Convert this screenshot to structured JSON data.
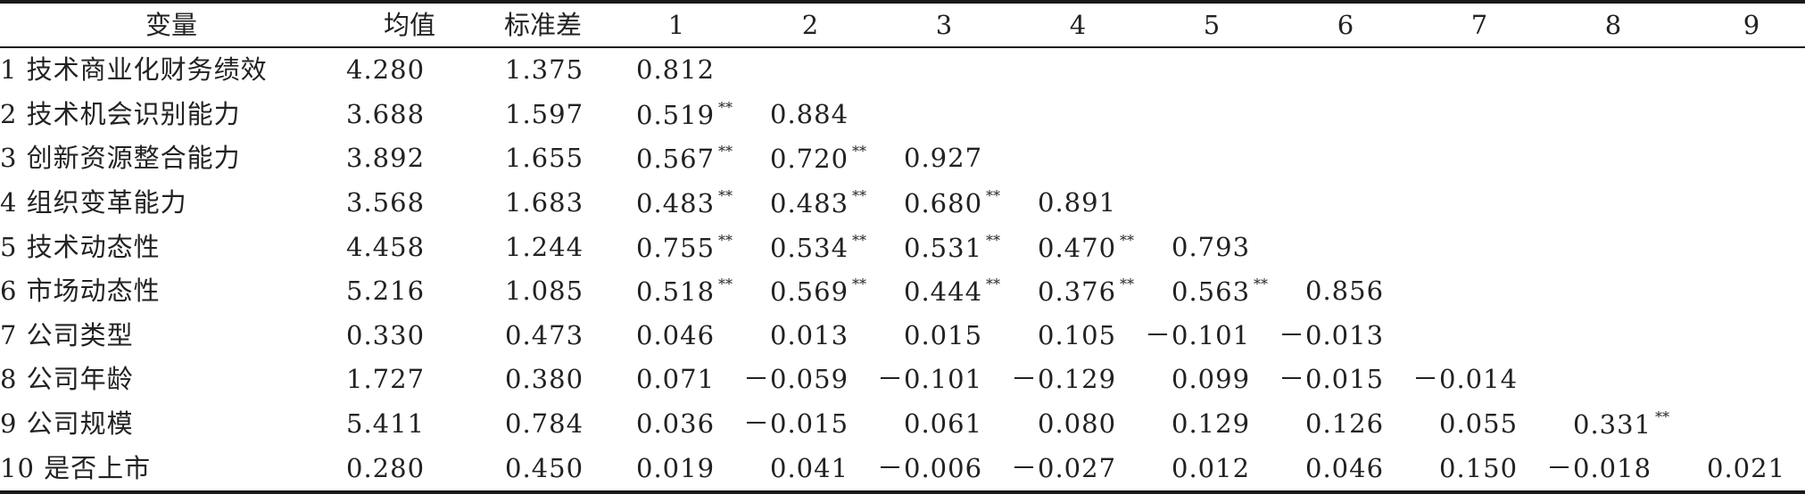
{
  "table": {
    "headers": [
      "变量",
      "均值",
      "标准差",
      "1",
      "2",
      "3",
      "4",
      "5",
      "6",
      "7",
      "8",
      "9"
    ],
    "rows": [
      {
        "label": "1 技术商业化财务绩效",
        "mean": "4.280",
        "sd": "1.375",
        "cells": [
          {
            "v": "0.812",
            "s": ""
          }
        ]
      },
      {
        "label": "2 技术机会识别能力",
        "mean": "3.688",
        "sd": "1.597",
        "cells": [
          {
            "v": "0.519",
            "s": "**"
          },
          {
            "v": "0.884",
            "s": ""
          }
        ]
      },
      {
        "label": "3 创新资源整合能力",
        "mean": "3.892",
        "sd": "1.655",
        "cells": [
          {
            "v": "0.567",
            "s": "**"
          },
          {
            "v": "0.720",
            "s": "**"
          },
          {
            "v": "0.927",
            "s": ""
          }
        ]
      },
      {
        "label": "4 组织变革能力",
        "mean": "3.568",
        "sd": "1.683",
        "cells": [
          {
            "v": "0.483",
            "s": "**"
          },
          {
            "v": "0.483",
            "s": "**"
          },
          {
            "v": "0.680",
            "s": "**"
          },
          {
            "v": "0.891",
            "s": ""
          }
        ]
      },
      {
        "label": "5 技术动态性",
        "mean": "4.458",
        "sd": "1.244",
        "cells": [
          {
            "v": "0.755",
            "s": "**"
          },
          {
            "v": "0.534",
            "s": "**"
          },
          {
            "v": "0.531",
            "s": "**"
          },
          {
            "v": "0.470",
            "s": "**"
          },
          {
            "v": "0.793",
            "s": ""
          }
        ]
      },
      {
        "label": "6 市场动态性",
        "mean": "5.216",
        "sd": "1.085",
        "cells": [
          {
            "v": "0.518",
            "s": "**"
          },
          {
            "v": "0.569",
            "s": "**"
          },
          {
            "v": "0.444",
            "s": "**"
          },
          {
            "v": "0.376",
            "s": "**"
          },
          {
            "v": "0.563",
            "s": "**"
          },
          {
            "v": "0.856",
            "s": ""
          }
        ]
      },
      {
        "label": "7 公司类型",
        "mean": "0.330",
        "sd": "0.473",
        "cells": [
          {
            "v": "0.046",
            "s": ""
          },
          {
            "v": "0.013",
            "s": ""
          },
          {
            "v": "0.015",
            "s": ""
          },
          {
            "v": "0.105",
            "s": ""
          },
          {
            "v": "－0.101",
            "s": ""
          },
          {
            "v": "－0.013",
            "s": ""
          }
        ]
      },
      {
        "label": "8 公司年龄",
        "mean": "1.727",
        "sd": "0.380",
        "cells": [
          {
            "v": "0.071",
            "s": ""
          },
          {
            "v": "－0.059",
            "s": ""
          },
          {
            "v": "－0.101",
            "s": ""
          },
          {
            "v": "－0.129",
            "s": ""
          },
          {
            "v": "0.099",
            "s": ""
          },
          {
            "v": "－0.015",
            "s": ""
          },
          {
            "v": "－0.014",
            "s": ""
          }
        ]
      },
      {
        "label": "9 公司规模",
        "mean": "5.411",
        "sd": "0.784",
        "cells": [
          {
            "v": "0.036",
            "s": ""
          },
          {
            "v": "－0.015",
            "s": ""
          },
          {
            "v": "0.061",
            "s": ""
          },
          {
            "v": "0.080",
            "s": ""
          },
          {
            "v": "0.129",
            "s": ""
          },
          {
            "v": "0.126",
            "s": ""
          },
          {
            "v": "0.055",
            "s": ""
          },
          {
            "v": "0.331",
            "s": "**"
          }
        ]
      },
      {
        "label": "10 是否上市",
        "mean": "0.280",
        "sd": "0.450",
        "cells": [
          {
            "v": "0.019",
            "s": ""
          },
          {
            "v": "0.041",
            "s": ""
          },
          {
            "v": "－0.006",
            "s": ""
          },
          {
            "v": "－0.027",
            "s": ""
          },
          {
            "v": "0.012",
            "s": ""
          },
          {
            "v": "0.046",
            "s": ""
          },
          {
            "v": "0.150",
            "s": ""
          },
          {
            "v": "－0.018",
            "s": ""
          },
          {
            "v": "0.021",
            "s": ""
          }
        ]
      }
    ]
  }
}
